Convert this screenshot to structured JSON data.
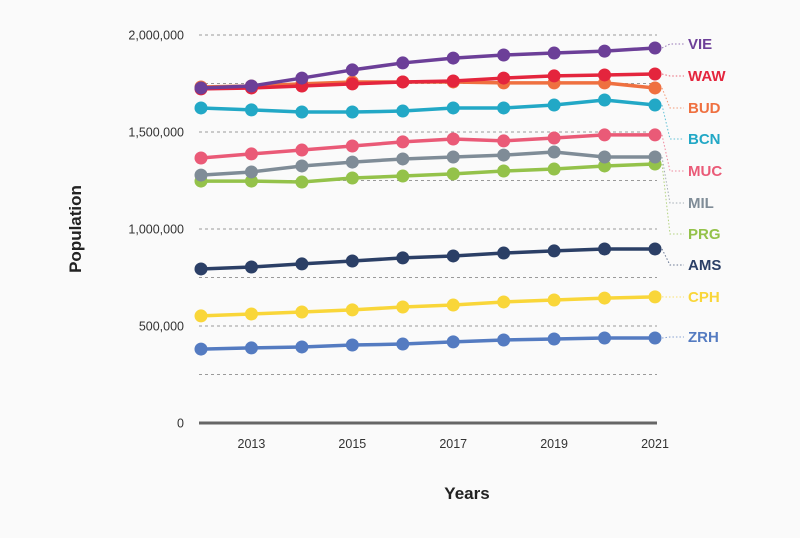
{
  "chart_data": {
    "type": "line",
    "title": "",
    "xlabel": "Years",
    "ylabel": "Population",
    "x": [
      2012,
      2013,
      2014,
      2015,
      2016,
      2017,
      2018,
      2019,
      2020,
      2021
    ],
    "x_tick_labels": [
      "2013",
      "2015",
      "2017",
      "2019",
      "2021"
    ],
    "y_tick_labels": [
      "0",
      "500,000",
      "1,000,000",
      "1,500,000",
      "2,000,000"
    ],
    "y_ticks": [
      0,
      500000,
      1000000,
      1500000,
      2000000
    ],
    "ylim": [
      0,
      2000000
    ],
    "grid": true,
    "grid_step": 250000,
    "legend": "direct-labels-right",
    "series": [
      {
        "name": "VIE",
        "color": "#6c3f98",
        "values": [
          1727000,
          1737000,
          1778000,
          1820000,
          1856000,
          1881000,
          1897000,
          1907000,
          1917000,
          1933000
        ]
      },
      {
        "name": "WAW",
        "color": "#e4253d",
        "values": [
          1722000,
          1727000,
          1737000,
          1748000,
          1758000,
          1763000,
          1778000,
          1789000,
          1794000,
          1799000
        ]
      },
      {
        "name": "BUD",
        "color": "#ef7040",
        "values": [
          1732000,
          1737000,
          1748000,
          1758000,
          1758000,
          1758000,
          1753000,
          1753000,
          1753000,
          1727000
        ]
      },
      {
        "name": "BCN",
        "color": "#22a8c6",
        "values": [
          1624000,
          1614000,
          1603000,
          1603000,
          1608000,
          1624000,
          1624000,
          1639000,
          1665000,
          1639000
        ]
      },
      {
        "name": "MUC",
        "color": "#ea5a77",
        "values": [
          1366000,
          1387000,
          1407000,
          1428000,
          1449000,
          1464000,
          1454000,
          1469000,
          1485000,
          1485000
        ]
      },
      {
        "name": "MIL",
        "color": "#7f8c97",
        "values": [
          1278000,
          1294000,
          1325000,
          1345000,
          1361000,
          1371000,
          1381000,
          1397000,
          1371000,
          1371000
        ]
      },
      {
        "name": "PRG",
        "color": "#94c24a",
        "values": [
          1247000,
          1247000,
          1242000,
          1263000,
          1273000,
          1284000,
          1299000,
          1309000,
          1325000,
          1335000
        ]
      },
      {
        "name": "AMS",
        "color": "#2b3f66",
        "values": [
          794000,
          804000,
          820000,
          835000,
          851000,
          861000,
          876000,
          887000,
          897000,
          897000
        ]
      },
      {
        "name": "CPH",
        "color": "#f9d639",
        "values": [
          552000,
          562000,
          572000,
          583000,
          598000,
          608000,
          624000,
          634000,
          644000,
          650000
        ]
      },
      {
        "name": "ZRH",
        "color": "#547bc1",
        "values": [
          381000,
          387000,
          392000,
          402000,
          407000,
          418000,
          428000,
          433000,
          438000,
          438000
        ]
      }
    ]
  }
}
